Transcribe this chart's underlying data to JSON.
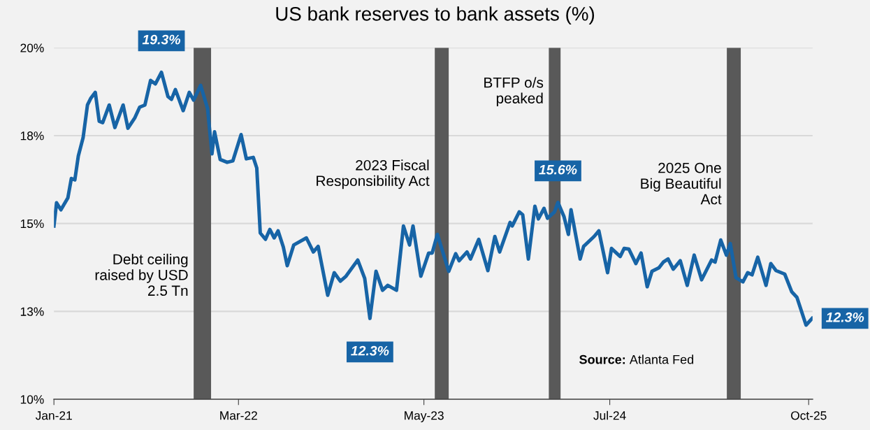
{
  "chart_data": {
    "type": "line",
    "title": "US bank reserves to bank assets (%)",
    "x": [
      "2021-01-01",
      "2021-01-07",
      "2021-01-17",
      "2021-02-02",
      "2021-02-10",
      "2021-02-18",
      "2021-02-26",
      "2021-03-09",
      "2021-03-19",
      "2021-03-27",
      "2021-04-06",
      "2021-04-15",
      "2021-04-23",
      "2021-05-08",
      "2021-05-21",
      "2021-06-09",
      "2021-06-20",
      "2021-07-06",
      "2021-07-17",
      "2021-07-29",
      "2021-08-11",
      "2021-08-22",
      "2021-09-05",
      "2021-09-20",
      "2021-09-28",
      "2021-10-07",
      "2021-10-25",
      "2021-11-08",
      "2021-11-18",
      "2021-12-04",
      "2021-12-20",
      "2021-12-30",
      "2022-01-05",
      "2022-01-18",
      "2022-02-03",
      "2022-02-16",
      "2022-03-07",
      "2022-03-19",
      "2022-04-04",
      "2022-04-12",
      "2022-04-20",
      "2022-05-02",
      "2022-05-12",
      "2022-05-22",
      "2022-05-31",
      "2022-06-12",
      "2022-06-21",
      "2022-07-06",
      "2022-08-04",
      "2022-08-20",
      "2022-08-31",
      "2022-09-22",
      "2022-10-07",
      "2022-10-21",
      "2022-11-03",
      "2022-11-30",
      "2022-12-16",
      "2022-12-28",
      "2023-01-11",
      "2023-01-26",
      "2023-02-07",
      "2023-02-27",
      "2023-03-15",
      "2023-03-29",
      "2023-04-06",
      "2023-04-24",
      "2023-05-12",
      "2023-05-20",
      "2023-06-01",
      "2023-06-27",
      "2023-07-13",
      "2023-07-21",
      "2023-08-08",
      "2023-08-16",
      "2023-09-04",
      "2023-09-25",
      "2023-10-11",
      "2023-10-22",
      "2023-11-15",
      "2023-11-20",
      "2023-12-06",
      "2023-12-14",
      "2023-12-27",
      "2024-01-11",
      "2024-01-19",
      "2024-02-01",
      "2024-02-09",
      "2024-02-25",
      "2024-03-04",
      "2024-03-18",
      "2024-03-28",
      "2024-04-03",
      "2024-04-24",
      "2024-05-02",
      "2024-05-26",
      "2024-06-06",
      "2024-06-26",
      "2024-07-05",
      "2024-07-25",
      "2024-08-03",
      "2024-08-14",
      "2024-08-30",
      "2024-09-11",
      "2024-09-25",
      "2024-10-06",
      "2024-10-22",
      "2024-11-01",
      "2024-11-12",
      "2024-11-24",
      "2024-12-10",
      "2024-12-26",
      "2025-01-11",
      "2025-01-28",
      "2025-02-20",
      "2025-02-28",
      "2025-03-13",
      "2025-03-26",
      "2025-04-04",
      "2025-04-17",
      "2025-05-03",
      "2025-05-14",
      "2025-05-24",
      "2025-06-06",
      "2025-06-25",
      "2025-07-06",
      "2025-07-18",
      "2025-08-07",
      "2025-08-23",
      "2025-09-04",
      "2025-09-25",
      "2025-10-09"
    ],
    "series": [
      {
        "color": "#1764a6",
        "values": [
          14.93,
          15.59,
          15.39,
          15.73,
          16.28,
          16.24,
          16.92,
          17.44,
          18.37,
          18.57,
          18.73,
          17.91,
          17.87,
          18.37,
          17.73,
          18.37,
          17.71,
          18.01,
          18.31,
          18.37,
          19.07,
          18.97,
          19.3,
          18.61,
          18.53,
          18.81,
          18.21,
          18.73,
          18.51,
          18.93,
          18.27,
          16.98,
          17.61,
          16.82,
          16.74,
          16.78,
          17.53,
          16.84,
          16.88,
          16.58,
          14.73,
          14.55,
          14.83,
          14.59,
          14.79,
          14.33,
          13.8,
          14.39,
          14.59,
          14.19,
          14.35,
          12.96,
          13.6,
          13.36,
          13.5,
          13.96,
          13.44,
          12.3,
          13.64,
          13.1,
          13.24,
          13.1,
          14.93,
          14.39,
          14.93,
          13.5,
          14.16,
          14.16,
          14.69,
          13.64,
          14.14,
          13.94,
          14.19,
          13.99,
          14.55,
          13.66,
          14.63,
          14.19,
          15.03,
          14.93,
          15.33,
          15.25,
          13.99,
          15.49,
          15.13,
          15.43,
          15.15,
          15.33,
          15.6,
          15.19,
          14.69,
          15.39,
          13.99,
          14.35,
          14.63,
          14.79,
          13.6,
          14.29,
          14.06,
          14.29,
          14.27,
          13.86,
          14.16,
          13.2,
          13.64,
          13.74,
          13.9,
          13.99,
          13.7,
          13.94,
          13.24,
          14.1,
          13.4,
          13.96,
          13.9,
          14.53,
          14.1,
          14.43,
          13.46,
          13.34,
          13.6,
          13.54,
          14.04,
          13.24,
          13.86,
          13.66,
          13.56,
          13.06,
          12.9,
          12.11,
          12.3
        ]
      }
    ],
    "xlim": [
      "2021-01-01",
      "2025-10-10"
    ],
    "xticks": [
      {
        "value": "2021-01-01",
        "label": "Jan-21"
      },
      {
        "value": "2022-03-01",
        "label": "Mar-22"
      },
      {
        "value": "2023-05-01",
        "label": "May-23"
      },
      {
        "value": "2024-07-01",
        "label": "Jul-24"
      },
      {
        "value": "2025-10-01",
        "label": "Oct-25"
      }
    ],
    "ylim": [
      10,
      20
    ],
    "yticks": [
      {
        "value": 10,
        "label": "10%"
      },
      {
        "value": 12.5,
        "label": "13%"
      },
      {
        "value": 15,
        "label": "15%"
      },
      {
        "value": 17.5,
        "label": "18%"
      },
      {
        "value": 20,
        "label": "20%"
      }
    ],
    "grid": "y",
    "bands": [
      {
        "axis": "x",
        "from": "2021-11-18",
        "to": "2021-12-28",
        "color": "#595959",
        "label": "Debt ceiling\nraised by USD\n2.5 Tn"
      },
      {
        "axis": "x",
        "from": "2023-05-26",
        "to": "2023-06-27",
        "color": "#595959",
        "label": "2023 Fiscal\nResponsibility Act"
      },
      {
        "axis": "x",
        "from": "2024-02-12",
        "to": "2024-03-10",
        "color": "#595959",
        "label": "BTFP o/s\npeaked"
      },
      {
        "axis": "x",
        "from": "2025-03-27",
        "to": "2025-04-28",
        "color": "#595959",
        "label": "2025 One\nBig Beautiful\nAct"
      }
    ],
    "annotations": [
      {
        "text": "19.3%",
        "x": "2021-09-05",
        "y": 19.3
      },
      {
        "text": "12.3%",
        "x": "2022-12-28",
        "y": 12.3
      },
      {
        "text": "15.6%",
        "x": "2024-03-04",
        "y": 15.6
      },
      {
        "text": "12.3%",
        "x": "2025-10-09",
        "y": 12.3
      },
      "Source: Atlanta Fed"
    ]
  }
}
